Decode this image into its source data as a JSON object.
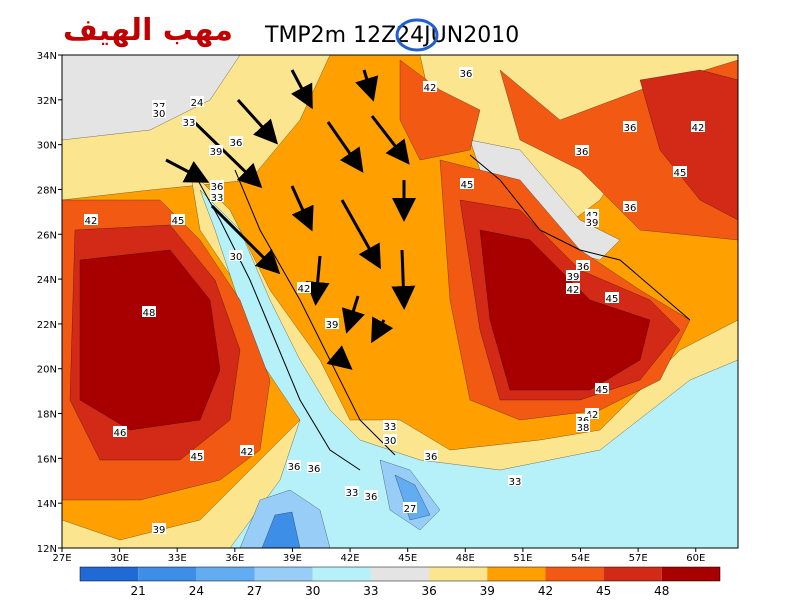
{
  "header": {
    "arabic_title": "مهب الهيف",
    "title": "TMP2m 12Z24JUN2010"
  },
  "map": {
    "xlim": [
      27,
      62.2
    ],
    "ylim": [
      12,
      34
    ],
    "xticks": [
      {
        "value": 27,
        "label": "27E"
      },
      {
        "value": 30,
        "label": "30E"
      },
      {
        "value": 33,
        "label": "33E"
      },
      {
        "value": 36,
        "label": "36E"
      },
      {
        "value": 39,
        "label": "39E"
      },
      {
        "value": 42,
        "label": "42E"
      },
      {
        "value": 45,
        "label": "45E"
      },
      {
        "value": 48,
        "label": "48E"
      },
      {
        "value": 51,
        "label": "51E"
      },
      {
        "value": 54,
        "label": "54E"
      },
      {
        "value": 57,
        "label": "57E"
      },
      {
        "value": 60,
        "label": "60E"
      }
    ],
    "yticks": [
      {
        "value": 12,
        "label": "12N"
      },
      {
        "value": 14,
        "label": "14N"
      },
      {
        "value": 16,
        "label": "16N"
      },
      {
        "value": 18,
        "label": "18N"
      },
      {
        "value": 20,
        "label": "20N"
      },
      {
        "value": 22,
        "label": "22N"
      },
      {
        "value": 24,
        "label": "24N"
      },
      {
        "value": 26,
        "label": "26N"
      },
      {
        "value": 28,
        "label": "28N"
      },
      {
        "value": 30,
        "label": "30N"
      },
      {
        "value": 32,
        "label": "32N"
      },
      {
        "value": 34,
        "label": "34N"
      }
    ],
    "contour_labels": [
      36,
      42,
      27,
      30,
      24,
      33,
      36,
      36,
      42,
      39,
      36,
      45,
      45,
      36,
      33,
      42,
      36,
      39,
      42,
      45,
      30,
      36,
      39,
      42,
      45,
      42,
      48,
      39,
      45,
      42,
      36,
      38,
      33,
      30,
      46,
      45,
      42,
      36,
      36,
      36,
      33,
      33,
      36,
      27,
      39
    ]
  },
  "colorbar": {
    "levels": [
      21,
      24,
      27,
      30,
      33,
      36,
      39,
      42,
      45,
      48
    ],
    "colors": [
      "#1f6ad6",
      "#3d8ee6",
      "#62acf2",
      "#98cdf8",
      "#b6f0f8",
      "#e4e4e4",
      "#fbe58e",
      "#ffa000",
      "#f25a14",
      "#d22a16",
      "#a80000"
    ]
  }
}
